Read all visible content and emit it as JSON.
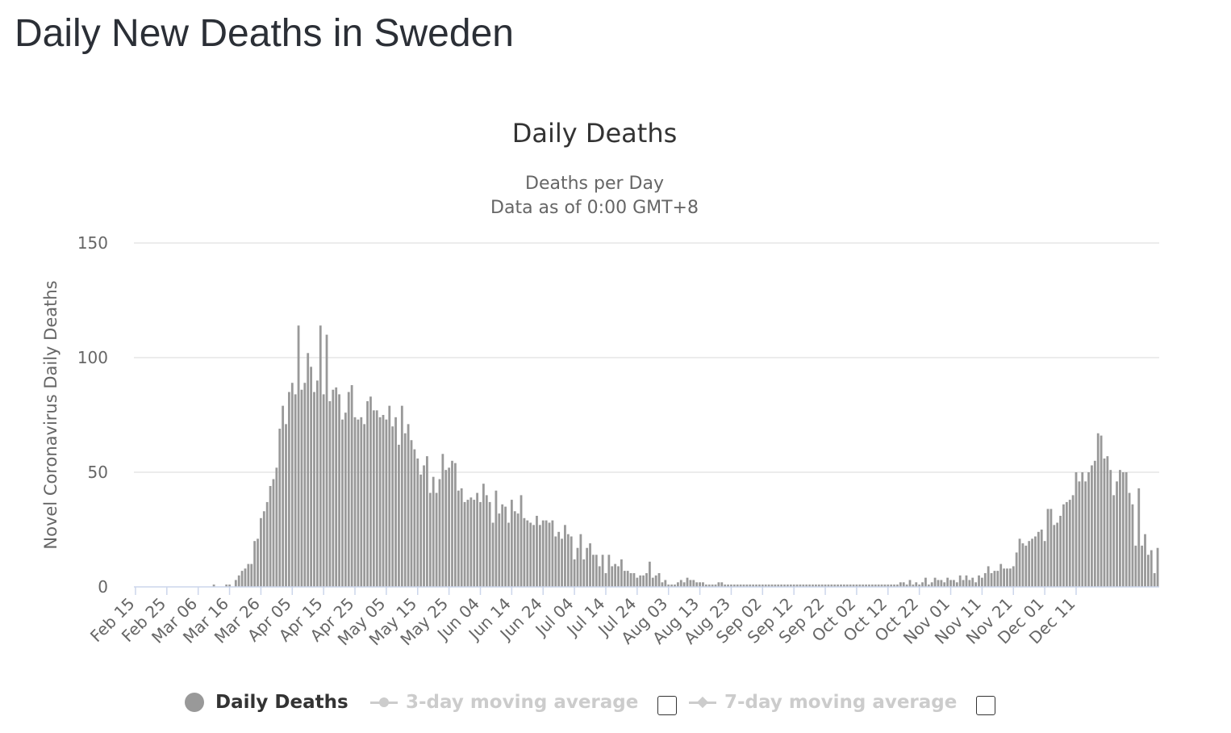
{
  "page": {
    "title": "Daily New Deaths in Sweden"
  },
  "legend": {
    "items": [
      {
        "label": "Daily Deaths",
        "active": true
      },
      {
        "label": "3-day moving average",
        "active": false
      },
      {
        "label": "7-day moving average",
        "active": false
      }
    ]
  },
  "colors": {
    "bar": "#999999",
    "grid": "#e6e6e6",
    "axis_line": "#ccd6eb",
    "text": "#666666",
    "title": "#333333",
    "legend_inactive": "#cccccc"
  },
  "chart_data": {
    "type": "bar",
    "title": "Daily Deaths",
    "subtitle": [
      "Deaths per Day",
      "Data as of 0:00 GMT+8"
    ],
    "ylabel": "Novel Coronavirus Daily Deaths",
    "xlabel": "",
    "ylim": [
      0,
      150
    ],
    "yticks": [
      0,
      50,
      100,
      150
    ],
    "grid": true,
    "legend_position": "bottom",
    "x_start": "Feb 15",
    "x_tick_labels": [
      "Feb 15",
      "Feb 25",
      "Mar 06",
      "Mar 16",
      "Mar 26",
      "Apr 05",
      "Apr 15",
      "Apr 25",
      "May 05",
      "May 15",
      "May 25",
      "Jun 04",
      "Jun 14",
      "Jun 24",
      "Jul 04",
      "Jul 14",
      "Jul 24",
      "Aug 03",
      "Aug 13",
      "Aug 23",
      "Sep 02",
      "Sep 12",
      "Sep 22",
      "Oct 02",
      "Oct 12",
      "Oct 22",
      "Nov 01",
      "Nov 11",
      "Nov 21",
      "Dec 01",
      "Dec 11"
    ],
    "series": [
      {
        "name": "Daily Deaths",
        "values": [
          0,
          0,
          0,
          0,
          0,
          0,
          0,
          0,
          0,
          0,
          0,
          0,
          0,
          0,
          0,
          0,
          0,
          0,
          0,
          0,
          0,
          0,
          0,
          0,
          0,
          1,
          0,
          0,
          0,
          1,
          1,
          0,
          3,
          5,
          7,
          8,
          10,
          10,
          20,
          21,
          30,
          33,
          37,
          44,
          47,
          52,
          69,
          79,
          71,
          85,
          89,
          84,
          114,
          86,
          89,
          102,
          96,
          85,
          90,
          114,
          84,
          110,
          81,
          86,
          87,
          84,
          73,
          76,
          85,
          88,
          74,
          73,
          74,
          71,
          81,
          83,
          77,
          77,
          74,
          75,
          73,
          79,
          70,
          74,
          62,
          79,
          67,
          71,
          64,
          60,
          56,
          49,
          53,
          57,
          41,
          48,
          41,
          47,
          58,
          51,
          52,
          55,
          54,
          42,
          43,
          37,
          38,
          39,
          38,
          41,
          37,
          45,
          40,
          37,
          28,
          42,
          32,
          36,
          35,
          28,
          38,
          33,
          32,
          40,
          30,
          29,
          28,
          27,
          31,
          27,
          29,
          29,
          28,
          29,
          22,
          24,
          21,
          27,
          23,
          22,
          12,
          17,
          23,
          12,
          17,
          19,
          14,
          14,
          9,
          14,
          6,
          14,
          9,
          10,
          9,
          12,
          7,
          7,
          6,
          6,
          4,
          5,
          5,
          6,
          11,
          4,
          5,
          6,
          2,
          3,
          1,
          1,
          1,
          2,
          3,
          2,
          4,
          3,
          3,
          2,
          2,
          2,
          1,
          1,
          1,
          1,
          2,
          2,
          1,
          1,
          1,
          1,
          1,
          1,
          1,
          1,
          1,
          1,
          1,
          1,
          1,
          1,
          1,
          1,
          1,
          1,
          1,
          1,
          1,
          1,
          1,
          1,
          1,
          1,
          1,
          1,
          1,
          1,
          1,
          1,
          1,
          1,
          1,
          1,
          1,
          1,
          1,
          1,
          1,
          1,
          1,
          1,
          1,
          1,
          1,
          1,
          1,
          1,
          1,
          1,
          1,
          1,
          1,
          1,
          2,
          2,
          1,
          3,
          1,
          2,
          1,
          2,
          4,
          1,
          2,
          4,
          3,
          3,
          2,
          4,
          3,
          3,
          2,
          5,
          3,
          5,
          3,
          4,
          2,
          5,
          4,
          6,
          9,
          6,
          7,
          7,
          10,
          8,
          8,
          8,
          9,
          15,
          21,
          19,
          18,
          20,
          21,
          22,
          24,
          25,
          20,
          34,
          34,
          27,
          28,
          31,
          36,
          37,
          38,
          40,
          50,
          46,
          50,
          46,
          50,
          53,
          55,
          67,
          66,
          56,
          57,
          51,
          40,
          46,
          51,
          50,
          50,
          41,
          36,
          18,
          43,
          18,
          23,
          14,
          16,
          6,
          17
        ]
      }
    ]
  }
}
